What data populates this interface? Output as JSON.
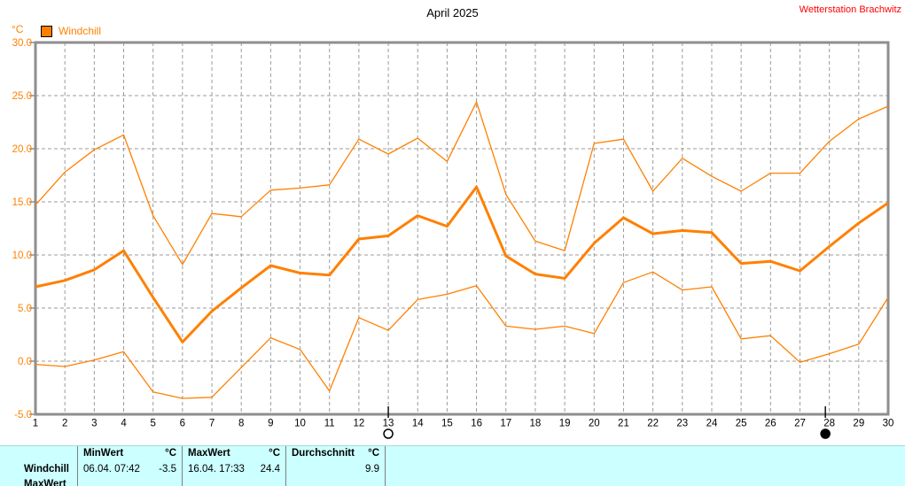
{
  "title": "April 2025",
  "station": "Wetterstation Brachwitz",
  "legend": {
    "label": "Windchill",
    "color": "#FF8000"
  },
  "colors": {
    "line_orange": "#FF8000",
    "grid": "#9B9B9B",
    "frame": "#8E8E8E",
    "axis_label_orange": "#FF8000",
    "x_label_black": "#000000",
    "table_background": "#CCFFFF",
    "station_red": "#FF0000"
  },
  "chart_data": {
    "type": "line",
    "title": "April 2025",
    "ylabel": "°C",
    "xlabel": "",
    "ylim": [
      -5,
      30
    ],
    "ytick_step": 5,
    "ytick_labels": [
      "30.0",
      "25.0",
      "20.0",
      "15.0",
      "10.0",
      "5.0",
      "0.0",
      "-5.0"
    ],
    "x_days": [
      1,
      2,
      3,
      4,
      5,
      6,
      7,
      8,
      9,
      10,
      11,
      12,
      13,
      14,
      15,
      16,
      17,
      18,
      19,
      20,
      21,
      22,
      23,
      24,
      25,
      26,
      27,
      28,
      29,
      30
    ],
    "grid": true,
    "legend_position": "top-left",
    "series": [
      {
        "name": "windchill-daily-max",
        "color": "#FF8000",
        "width": "thin",
        "values": [
          14.7,
          17.8,
          19.9,
          21.3,
          13.7,
          9.1,
          13.9,
          13.6,
          16.1,
          16.3,
          16.6,
          20.9,
          19.5,
          21.0,
          18.8,
          24.4,
          15.7,
          11.3,
          10.4,
          20.5,
          20.9,
          16.0,
          19.1,
          17.4,
          16.0,
          17.7,
          17.7,
          20.7,
          22.8,
          24.0
        ]
      },
      {
        "name": "windchill-daily-mean",
        "color": "#FF8000",
        "width": "thick",
        "values": [
          7.0,
          7.6,
          8.6,
          10.4,
          6.0,
          1.8,
          4.7,
          6.9,
          9.0,
          8.3,
          8.1,
          11.5,
          11.8,
          13.7,
          12.7,
          16.4,
          9.9,
          8.2,
          7.8,
          11.1,
          13.5,
          12.0,
          12.3,
          12.1,
          9.2,
          9.4,
          8.5,
          10.8,
          13.0,
          14.9
        ]
      },
      {
        "name": "windchill-daily-min",
        "color": "#FF8000",
        "width": "thin",
        "values": [
          -0.3,
          -0.5,
          0.1,
          0.9,
          -2.9,
          -3.5,
          -3.4,
          -0.6,
          2.2,
          1.1,
          -2.8,
          4.1,
          2.9,
          5.8,
          6.3,
          7.1,
          3.3,
          3.0,
          3.3,
          2.6,
          7.4,
          8.4,
          6.7,
          7.0,
          2.1,
          2.4,
          -0.1,
          0.7,
          1.6,
          6.0
        ]
      }
    ],
    "moon_markers": [
      {
        "day": 13,
        "phase": "full-moon"
      },
      {
        "day": 28,
        "phase": "new-moon"
      }
    ]
  },
  "table": {
    "header": {
      "min_label": "MinWert",
      "min_unit": "°C",
      "max_label": "MaxWert",
      "max_unit": "°C",
      "avg_label": "Durchschnitt",
      "avg_unit": "°C"
    },
    "rows": [
      {
        "label": "Windchill",
        "min_text": "06.04.  07:42",
        "min_value": "-3.5",
        "max_text": "16.04.  17:33",
        "max_value": "24.4",
        "avg_value": "9.9"
      },
      {
        "label": "MaxWert"
      }
    ]
  }
}
